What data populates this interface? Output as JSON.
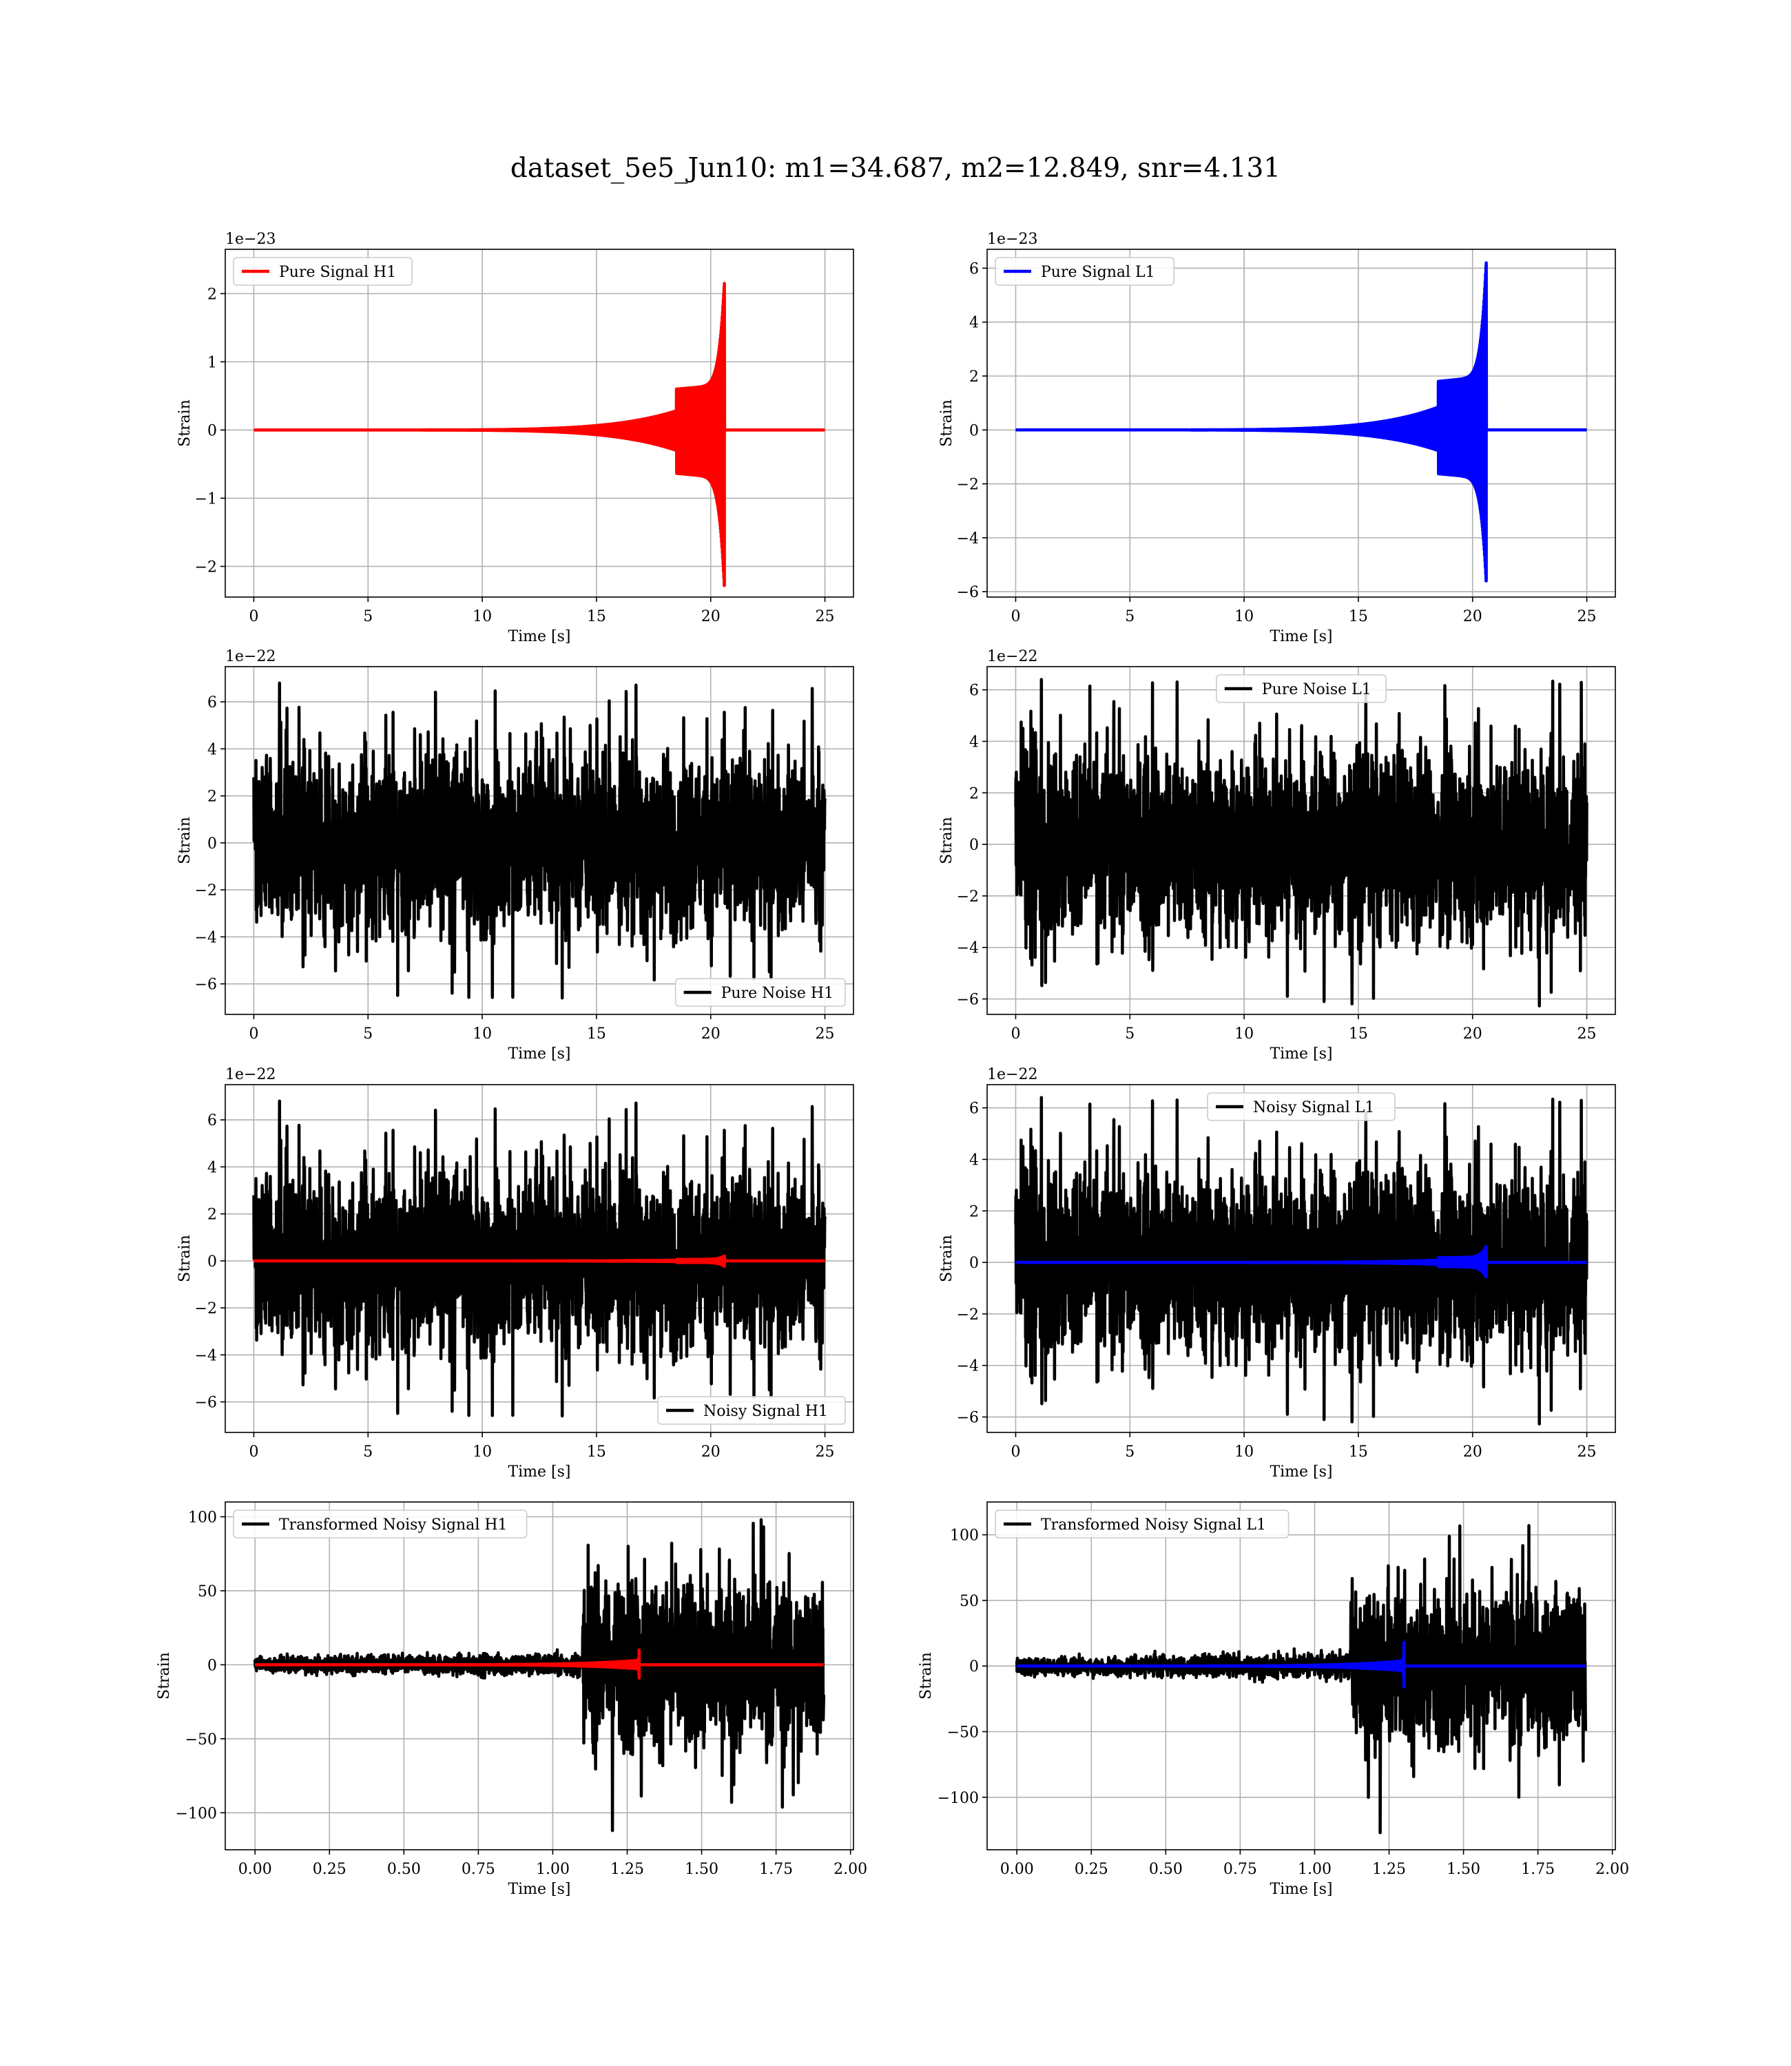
{
  "figure": {
    "title": "dataset_5e5_Jun10: m1=34.687, m2=12.849, snr=4.131"
  },
  "chart_data": [
    {
      "type": "line",
      "ylabel": "Strain",
      "xlabel": "Time [s]",
      "offset_text": "1e−23",
      "xlim": [
        -1.25,
        26.25
      ],
      "ylim": [
        -2.45,
        2.65
      ],
      "xticks": [
        0,
        5,
        10,
        15,
        20,
        25
      ],
      "xtick_labels": [
        "0",
        "5",
        "10",
        "15",
        "20",
        "25"
      ],
      "yticks": [
        -2,
        -1,
        0,
        1,
        2
      ],
      "ytick_labels": [
        "−2",
        "−1",
        "0",
        "1",
        "2"
      ],
      "grid": true,
      "legend_loc": "upper left",
      "series": [
        {
          "name": "Pure Signal H1",
          "color": "#ff0000",
          "kind": "chirp",
          "t_start": 0,
          "t_end": 25,
          "t_merge": 20.6,
          "max": 2.15,
          "min": -2.28,
          "plateau_start": 18.5,
          "plateau": 0.6
        }
      ]
    },
    {
      "type": "line",
      "ylabel": "Strain",
      "xlabel": "Time [s]",
      "offset_text": "1e−23",
      "xlim": [
        -1.25,
        26.25
      ],
      "ylim": [
        -6.2,
        6.7
      ],
      "xticks": [
        0,
        5,
        10,
        15,
        20,
        25
      ],
      "xtick_labels": [
        "0",
        "5",
        "10",
        "15",
        "20",
        "25"
      ],
      "yticks": [
        -6,
        -4,
        -2,
        0,
        2,
        4,
        6
      ],
      "ytick_labels": [
        "−6",
        "−4",
        "−2",
        "0",
        "2",
        "4",
        "6"
      ],
      "grid": true,
      "legend_loc": "upper left",
      "series": [
        {
          "name": "Pure Signal L1",
          "color": "#0000ff",
          "kind": "chirp",
          "t_start": 0,
          "t_end": 25,
          "t_merge": 20.6,
          "max": 6.2,
          "min": -5.6,
          "plateau_start": 18.5,
          "plateau": 1.8
        }
      ]
    },
    {
      "type": "line",
      "ylabel": "Strain",
      "xlabel": "Time [s]",
      "offset_text": "1e−22",
      "xlim": [
        -1.25,
        26.25
      ],
      "ylim": [
        -7.3,
        7.5
      ],
      "xticks": [
        0,
        5,
        10,
        15,
        20,
        25
      ],
      "xtick_labels": [
        "0",
        "5",
        "10",
        "15",
        "20",
        "25"
      ],
      "yticks": [
        -6,
        -4,
        -2,
        0,
        2,
        4,
        6
      ],
      "ytick_labels": [
        "−6",
        "−4",
        "−2",
        "0",
        "2",
        "4",
        "6"
      ],
      "grid": true,
      "legend_loc": "lower right",
      "series": [
        {
          "name": "Pure Noise H1",
          "color": "#000000",
          "kind": "noise",
          "t_start": 0,
          "t_end": 25,
          "typical": 3.3,
          "max": 6.8,
          "min": -6.6
        }
      ]
    },
    {
      "type": "line",
      "ylabel": "Strain",
      "xlabel": "Time [s]",
      "offset_text": "1e−22",
      "xlim": [
        -1.25,
        26.25
      ],
      "ylim": [
        -6.6,
        6.9
      ],
      "xticks": [
        0,
        5,
        10,
        15,
        20,
        25
      ],
      "xtick_labels": [
        "0",
        "5",
        "10",
        "15",
        "20",
        "25"
      ],
      "yticks": [
        -6,
        -4,
        -2,
        0,
        2,
        4,
        6
      ],
      "ytick_labels": [
        "−6",
        "−4",
        "−2",
        "0",
        "2",
        "4",
        "6"
      ],
      "grid": true,
      "legend_loc": "upper center",
      "series": [
        {
          "name": "Pure Noise L1",
          "color": "#000000",
          "kind": "noise",
          "t_start": 0,
          "t_end": 25,
          "typical": 3.2,
          "max": 6.4,
          "min": -6.1
        }
      ]
    },
    {
      "type": "line",
      "ylabel": "Strain",
      "xlabel": "Time [s]",
      "offset_text": "1e−22",
      "xlim": [
        -1.25,
        26.25
      ],
      "ylim": [
        -7.3,
        7.5
      ],
      "xticks": [
        0,
        5,
        10,
        15,
        20,
        25
      ],
      "xtick_labels": [
        "0",
        "5",
        "10",
        "15",
        "20",
        "25"
      ],
      "yticks": [
        -6,
        -4,
        -2,
        0,
        2,
        4,
        6
      ],
      "ytick_labels": [
        "−6",
        "−4",
        "−2",
        "0",
        "2",
        "4",
        "6"
      ],
      "grid": true,
      "legend_loc": "lower right",
      "series": [
        {
          "name": "Noisy Signal H1",
          "color": "#000000",
          "kind": "noise",
          "t_start": 0,
          "t_end": 25,
          "typical": 3.3,
          "max": 6.8,
          "min": -6.6
        },
        {
          "color": "#ff0000",
          "kind": "chirp",
          "t_start": 0,
          "t_end": 25,
          "t_merge": 20.6,
          "max": 0.21,
          "min": -0.23,
          "plateau_start": 18.5,
          "plateau": 0.06
        }
      ]
    },
    {
      "type": "line",
      "ylabel": "Strain",
      "xlabel": "Time [s]",
      "offset_text": "1e−22",
      "xlim": [
        -1.25,
        26.25
      ],
      "ylim": [
        -6.6,
        6.9
      ],
      "xticks": [
        0,
        5,
        10,
        15,
        20,
        25
      ],
      "xtick_labels": [
        "0",
        "5",
        "10",
        "15",
        "20",
        "25"
      ],
      "yticks": [
        -6,
        -4,
        -2,
        0,
        2,
        4,
        6
      ],
      "ytick_labels": [
        "−6",
        "−4",
        "−2",
        "0",
        "2",
        "4",
        "6"
      ],
      "grid": true,
      "legend_loc": "upper center",
      "series": [
        {
          "name": "Noisy Signal L1",
          "color": "#000000",
          "kind": "noise",
          "t_start": 0,
          "t_end": 25,
          "typical": 3.2,
          "max": 6.4,
          "min": -6.1
        },
        {
          "color": "#0000ff",
          "kind": "chirp",
          "t_start": 0,
          "t_end": 25,
          "t_merge": 20.6,
          "max": 0.62,
          "min": -0.56,
          "plateau_start": 18.5,
          "plateau": 0.18
        }
      ]
    },
    {
      "type": "line",
      "ylabel": "Strain",
      "xlabel": "Time [s]",
      "offset_text": "",
      "xlim": [
        -0.1,
        2.01
      ],
      "ylim": [
        -125,
        110
      ],
      "xticks": [
        0,
        0.25,
        0.5,
        0.75,
        1.0,
        1.25,
        1.5,
        1.75,
        2.0
      ],
      "xtick_labels": [
        "0.00",
        "0.25",
        "0.50",
        "0.75",
        "1.00",
        "1.25",
        "1.50",
        "1.75",
        "2.00"
      ],
      "yticks": [
        -100,
        -50,
        0,
        50,
        100
      ],
      "ytick_labels": [
        "−100",
        "−50",
        "0",
        "50",
        "100"
      ],
      "grid": true,
      "legend_loc": "upper left",
      "series": [
        {
          "name": "Transformed Noisy Signal H1",
          "color": "#000000",
          "kind": "whitened",
          "t_start": 0,
          "t_end": 1.91,
          "t_jump": 1.1,
          "low": 5,
          "high": 55,
          "max": 98,
          "min": -112
        },
        {
          "color": "#ff0000",
          "kind": "chirp",
          "t_start": 0,
          "t_end": 1.91,
          "t_merge": 1.29,
          "max": 10,
          "min": -9,
          "plateau_start": 1.28,
          "plateau": 3
        }
      ]
    },
    {
      "type": "line",
      "ylabel": "Strain",
      "xlabel": "Time [s]",
      "offset_text": "",
      "xlim": [
        -0.1,
        2.01
      ],
      "ylim": [
        -140,
        125
      ],
      "xticks": [
        0,
        0.25,
        0.5,
        0.75,
        1.0,
        1.25,
        1.5,
        1.75,
        2.0
      ],
      "xtick_labels": [
        "0.00",
        "0.25",
        "0.50",
        "0.75",
        "1.00",
        "1.25",
        "1.50",
        "1.75",
        "2.00"
      ],
      "yticks": [
        -100,
        -50,
        0,
        50,
        100
      ],
      "ytick_labels": [
        "−100",
        "−50",
        "0",
        "50",
        "100"
      ],
      "grid": true,
      "legend_loc": "upper left",
      "series": [
        {
          "name": "Transformed Noisy Signal L1",
          "color": "#000000",
          "kind": "whitened",
          "t_start": 0,
          "t_end": 1.91,
          "t_jump": 1.12,
          "low": 6,
          "high": 55,
          "max": 107,
          "min": -127
        },
        {
          "color": "#0000ff",
          "kind": "chirp",
          "t_start": 0,
          "t_end": 1.91,
          "t_merge": 1.3,
          "max": 18,
          "min": -16,
          "plateau_start": 1.29,
          "plateau": 4
        }
      ]
    }
  ]
}
